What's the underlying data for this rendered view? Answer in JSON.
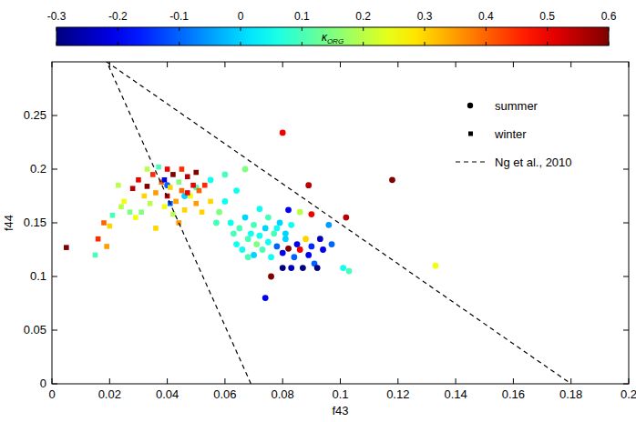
{
  "chart_data": {
    "type": "scatter",
    "x_label": "f43",
    "y_label": "f44",
    "xlim": [
      0,
      0.2
    ],
    "ylim": [
      0,
      0.3
    ],
    "xticks": [
      0,
      0.02,
      0.04,
      0.06,
      0.08,
      0.1,
      0.12,
      0.14,
      0.16,
      0.18,
      0.2
    ],
    "yticks": [
      0,
      0.05,
      0.1,
      0.15,
      0.2,
      0.25
    ],
    "legend": "upper right",
    "colorbar": {
      "label": "κ",
      "label_sub": "ORG",
      "range": [
        -0.3,
        0.6
      ],
      "ticks": [
        -0.3,
        -0.2,
        -0.1,
        0,
        0.1,
        0.2,
        0.3,
        0.4,
        0.5,
        0.6
      ]
    },
    "series": [
      {
        "name": "summer",
        "marker": "circle",
        "x": [
          0.04,
          0.046,
          0.05,
          0.055,
          0.06,
          0.058,
          0.062,
          0.063,
          0.064,
          0.065,
          0.066,
          0.067,
          0.068,
          0.069,
          0.07,
          0.07,
          0.071,
          0.072,
          0.073,
          0.074,
          0.074,
          0.075,
          0.076,
          0.076,
          0.077,
          0.078,
          0.079,
          0.08,
          0.08,
          0.081,
          0.082,
          0.082,
          0.083,
          0.084,
          0.085,
          0.086,
          0.087,
          0.088,
          0.089,
          0.09,
          0.09,
          0.091,
          0.092,
          0.094,
          0.096,
          0.101,
          0.103,
          0.08,
          0.089,
          0.102,
          0.118,
          0.133,
          0.067,
          0.064,
          0.072,
          0.078,
          0.06,
          0.068,
          0.075,
          0.083,
          0.057,
          0.086,
          0.093,
          0.097,
          0.081
        ],
        "values": [
          0.185,
          0.175,
          0.183,
          0.19,
          0.195,
          0.16,
          0.15,
          0.14,
          0.13,
          0.145,
          0.125,
          0.155,
          0.135,
          0.14,
          0.12,
          0.148,
          0.13,
          0.138,
          0.125,
          0.145,
          0.08,
          0.132,
          0.1,
          0.118,
          0.14,
          0.128,
          0.15,
          0.122,
          0.108,
          0.135,
          0.126,
          0.162,
          0.108,
          0.118,
          0.13,
          0.125,
          0.108,
          0.135,
          0.12,
          0.128,
          0.158,
          0.112,
          0.108,
          0.125,
          0.148,
          0.108,
          0.105,
          0.234,
          0.185,
          0.155,
          0.19,
          0.11,
          0.2,
          0.18,
          0.163,
          0.145,
          0.17,
          0.118,
          0.155,
          0.148,
          0.15,
          0.16,
          0.135,
          0.13,
          0.14
        ],
        "kappa": [
          -0.1,
          0.0,
          0.1,
          0.05,
          0.1,
          0.15,
          0.05,
          0.1,
          0.05,
          0.1,
          0.05,
          0.0,
          0.1,
          0.05,
          0.0,
          0.1,
          0.15,
          0.05,
          0.1,
          0.0,
          -0.2,
          0.05,
          0.6,
          0.05,
          0.1,
          -0.1,
          0.0,
          -0.2,
          -0.3,
          0.0,
          0.6,
          -0.2,
          -0.25,
          -0.1,
          -0.2,
          0.5,
          -0.3,
          0.3,
          -0.2,
          -0.15,
          0.5,
          -0.1,
          -0.3,
          -0.2,
          -0.05,
          0.05,
          0.1,
          0.5,
          0.55,
          0.55,
          0.6,
          0.25,
          0.15,
          0.05,
          0.05,
          0.05,
          0.05,
          0.1,
          0.1,
          0.05,
          0.1,
          0.2,
          -0.25,
          -0.1,
          0.0
        ]
      },
      {
        "name": "winter",
        "marker": "square",
        "x": [
          0.005,
          0.018,
          0.019,
          0.016,
          0.015,
          0.02,
          0.023,
          0.025,
          0.028,
          0.03,
          0.031,
          0.032,
          0.033,
          0.034,
          0.035,
          0.036,
          0.037,
          0.038,
          0.039,
          0.04,
          0.04,
          0.041,
          0.042,
          0.042,
          0.043,
          0.044,
          0.045,
          0.045,
          0.046,
          0.047,
          0.048,
          0.049,
          0.05,
          0.05,
          0.051,
          0.052,
          0.024,
          0.029,
          0.036,
          0.044,
          0.055,
          0.039,
          0.041,
          0.027,
          0.021,
          0.047,
          0.053,
          0.033
        ],
        "values": [
          0.127,
          0.15,
          0.128,
          0.135,
          0.12,
          0.147,
          0.185,
          0.17,
          0.182,
          0.19,
          0.16,
          0.175,
          0.184,
          0.168,
          0.195,
          0.178,
          0.202,
          0.188,
          0.165,
          0.2,
          0.175,
          0.183,
          0.158,
          0.195,
          0.17,
          0.188,
          0.18,
          0.2,
          0.162,
          0.193,
          0.175,
          0.185,
          0.168,
          0.197,
          0.18,
          0.16,
          0.165,
          0.155,
          0.145,
          0.15,
          0.17,
          0.19,
          0.168,
          0.16,
          0.157,
          0.178,
          0.185,
          0.2
        ],
        "kappa": [
          0.6,
          0.4,
          0.35,
          0.45,
          0.1,
          0.3,
          0.2,
          0.25,
          0.55,
          0.5,
          0.15,
          0.3,
          0.6,
          0.2,
          0.45,
          0.35,
          0.1,
          0.4,
          0.25,
          0.5,
          0.55,
          0.3,
          0.2,
          0.6,
          0.35,
          0.15,
          0.4,
          0.45,
          0.3,
          0.55,
          0.25,
          0.5,
          0.35,
          0.6,
          0.4,
          0.3,
          0.2,
          0.25,
          0.3,
          0.35,
          0.3,
          -0.2,
          -0.1,
          0.15,
          0.1,
          0.5,
          0.45,
          0.2
        ]
      },
      {
        "name": "Ng et al., 2010",
        "type": "line",
        "line_style": "dashed",
        "color": "#000000",
        "x": [
          0.069,
          0.019,
          0.18
        ],
        "values": [
          0,
          0.3,
          0
        ]
      }
    ]
  }
}
